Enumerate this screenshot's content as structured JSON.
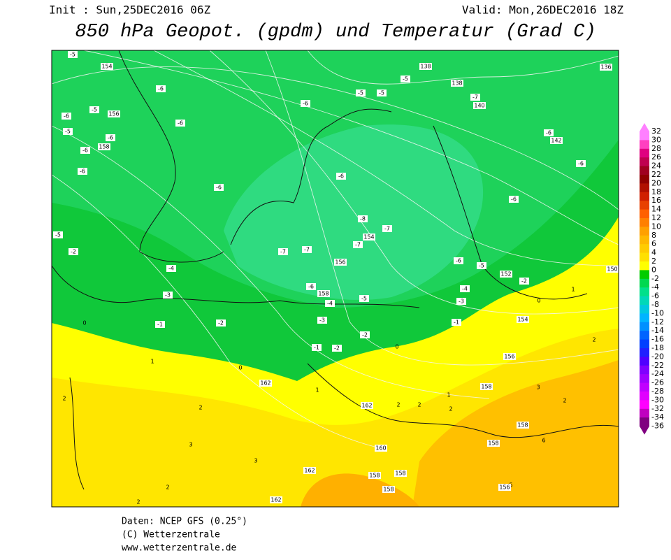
{
  "header": {
    "init": "Init : Sun,25DEC2016 06Z",
    "valid": "Valid: Mon,26DEC2016 18Z",
    "title": "850 hPa Geopot. (gpdm) und Temperatur (Grad C)"
  },
  "map": {
    "temperature_labels": [
      -5,
      -6,
      -6,
      -5,
      -6,
      -5,
      -6,
      -6,
      -6,
      -6,
      -6,
      -5,
      -5,
      -5,
      -7,
      -6,
      -6,
      -6,
      -6,
      -8,
      -7,
      -7,
      -7,
      -7,
      -6,
      -5,
      -2,
      -4,
      -3,
      -6,
      -4,
      -5,
      -3,
      -2,
      -1,
      -1,
      -2,
      -2,
      -1,
      -4,
      -2,
      -5,
      -3
    ],
    "temperature_line_labels": [
      0,
      1,
      0,
      0,
      2,
      3,
      3,
      2,
      2,
      2,
      1,
      2,
      2,
      2,
      1,
      2,
      3,
      6,
      5,
      1,
      0,
      2
    ],
    "geopotential_labels": [
      154,
      156,
      158,
      154,
      156,
      158,
      138,
      138,
      140,
      142,
      136,
      150,
      152,
      154,
      156,
      158,
      158,
      158,
      162,
      162,
      160,
      158,
      158,
      158,
      162,
      162,
      156
    ]
  },
  "colorbar": {
    "labels": [
      32,
      30,
      28,
      26,
      24,
      22,
      20,
      18,
      16,
      14,
      12,
      10,
      8,
      6,
      4,
      2,
      0,
      -2,
      -4,
      -6,
      -8,
      -10,
      -12,
      -14,
      -16,
      -18,
      -20,
      -22,
      -24,
      -26,
      -28,
      -30,
      -32,
      -34,
      -36
    ],
    "colors": [
      "#ff80ff",
      "#ff40c0",
      "#e00080",
      "#c00050",
      "#a00020",
      "#900000",
      "#b01000",
      "#d02000",
      "#e84000",
      "#ff6000",
      "#ff8000",
      "#ffa000",
      "#ffb800",
      "#ffcc00",
      "#ffe000",
      "#ffff00",
      "#00cc00",
      "#00d850",
      "#00e08a",
      "#00d8b8",
      "#00c8e0",
      "#00b4ff",
      "#0090ff",
      "#0064ff",
      "#0040ff",
      "#2020ff",
      "#5000ff",
      "#8000ff",
      "#a000ff",
      "#c000ff",
      "#e000ff",
      "#ff00ff",
      "#c000c0",
      "#800080"
    ]
  },
  "footer": {
    "lines": [
      "Daten: NCEP GFS (0.25°)",
      "(C) Wetterzentrale",
      "www.wetterzentrale.de"
    ]
  }
}
